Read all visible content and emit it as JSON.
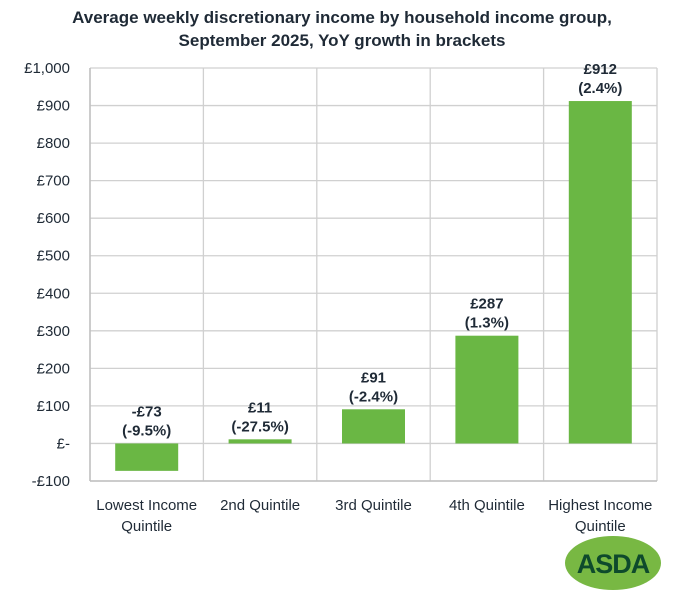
{
  "chart_data": {
    "type": "bar",
    "title_line1": "Average weekly discretionary income by household income group,",
    "title_line2": "September 2025, YoY growth in brackets",
    "categories": [
      [
        "Lowest Income",
        "Quintile"
      ],
      [
        "2nd Quintile"
      ],
      [
        "3rd Quintile"
      ],
      [
        "4th Quintile"
      ],
      [
        "Highest Income",
        "Quintile"
      ]
    ],
    "values": [
      -73,
      11,
      91,
      287,
      912
    ],
    "value_labels": [
      "-£73",
      "£11",
      "£91",
      "£287",
      "£912"
    ],
    "growth_labels": [
      "(-9.5%)",
      "(-27.5%)",
      "(-2.4%)",
      "(1.3%)",
      "(2.4%)"
    ],
    "ylim": [
      -100,
      1000
    ],
    "yticks": [
      -100,
      0,
      100,
      200,
      300,
      400,
      500,
      600,
      700,
      800,
      900,
      1000
    ],
    "ytick_labels": [
      "-£100",
      "£-",
      "£100",
      "£200",
      "£300",
      "£400",
      "£500",
      "£600",
      "£700",
      "£800",
      "£900",
      "£1,000"
    ],
    "grid": true,
    "bar_color": "#6ab744",
    "xlabel": "",
    "ylabel": ""
  },
  "logo": {
    "text": "ASDA",
    "bg_color": "#78b843",
    "text_color": "#0e4a2c"
  }
}
